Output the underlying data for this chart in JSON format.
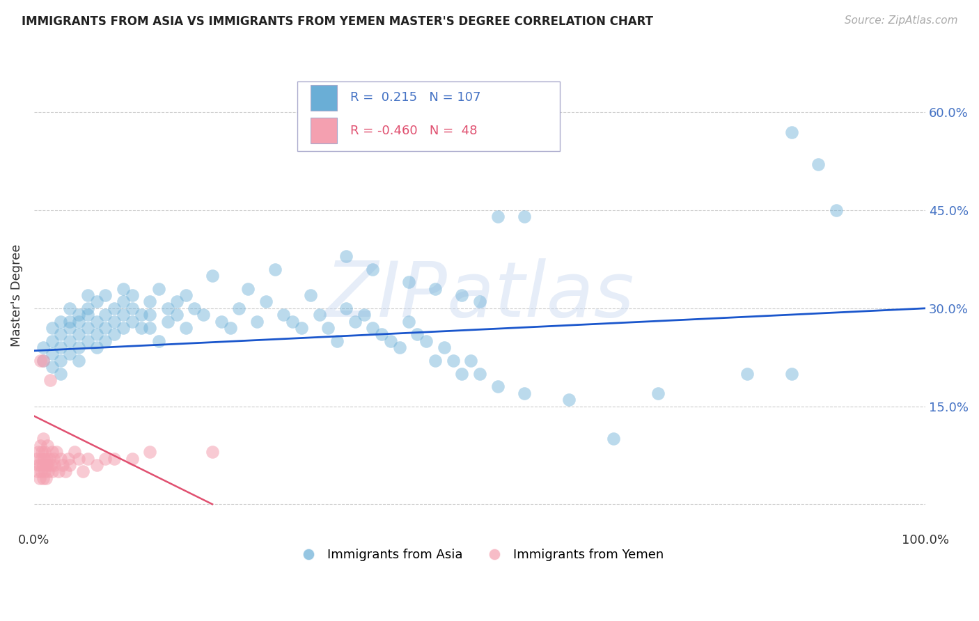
{
  "title": "IMMIGRANTS FROM ASIA VS IMMIGRANTS FROM YEMEN MASTER'S DEGREE CORRELATION CHART",
  "source": "Source: ZipAtlas.com",
  "ylabel": "Master's Degree",
  "yticks": [
    0.0,
    0.15,
    0.3,
    0.45,
    0.6
  ],
  "ytick_labels": [
    "",
    "15.0%",
    "30.0%",
    "45.0%",
    "60.0%"
  ],
  "xmin": 0.0,
  "xmax": 1.0,
  "ymin": -0.04,
  "ymax": 0.68,
  "blue_R": 0.215,
  "blue_N": 107,
  "pink_R": -0.46,
  "pink_N": 48,
  "blue_color": "#6aaed6",
  "pink_color": "#f4a0b0",
  "trend_blue": "#1a56cc",
  "trend_pink": "#e05070",
  "watermark": "ZIPatlas",
  "watermark_blue": "#c8d8f0",
  "legend_label_blue": "Immigrants from Asia",
  "legend_label_pink": "Immigrants from Yemen",
  "blue_scatter_x": [
    0.01,
    0.01,
    0.02,
    0.02,
    0.02,
    0.02,
    0.03,
    0.03,
    0.03,
    0.03,
    0.03,
    0.04,
    0.04,
    0.04,
    0.04,
    0.04,
    0.05,
    0.05,
    0.05,
    0.05,
    0.05,
    0.06,
    0.06,
    0.06,
    0.06,
    0.06,
    0.07,
    0.07,
    0.07,
    0.07,
    0.08,
    0.08,
    0.08,
    0.08,
    0.09,
    0.09,
    0.09,
    0.1,
    0.1,
    0.1,
    0.1,
    0.11,
    0.11,
    0.11,
    0.12,
    0.12,
    0.13,
    0.13,
    0.13,
    0.14,
    0.14,
    0.15,
    0.15,
    0.16,
    0.16,
    0.17,
    0.17,
    0.18,
    0.19,
    0.2,
    0.21,
    0.22,
    0.23,
    0.24,
    0.25,
    0.26,
    0.27,
    0.28,
    0.29,
    0.3,
    0.31,
    0.32,
    0.33,
    0.34,
    0.35,
    0.36,
    0.37,
    0.38,
    0.39,
    0.4,
    0.41,
    0.42,
    0.43,
    0.44,
    0.45,
    0.46,
    0.47,
    0.48,
    0.49,
    0.5,
    0.35,
    0.38,
    0.42,
    0.45,
    0.48,
    0.5,
    0.52,
    0.55,
    0.6,
    0.65,
    0.7,
    0.8,
    0.85,
    0.88,
    0.9,
    0.52,
    0.55,
    0.85
  ],
  "blue_scatter_y": [
    0.22,
    0.24,
    0.25,
    0.23,
    0.27,
    0.21,
    0.26,
    0.24,
    0.28,
    0.22,
    0.2,
    0.28,
    0.25,
    0.23,
    0.27,
    0.3,
    0.28,
    0.26,
    0.24,
    0.29,
    0.22,
    0.3,
    0.27,
    0.25,
    0.29,
    0.32,
    0.28,
    0.31,
    0.26,
    0.24,
    0.29,
    0.27,
    0.32,
    0.25,
    0.3,
    0.28,
    0.26,
    0.31,
    0.29,
    0.27,
    0.33,
    0.3,
    0.28,
    0.32,
    0.29,
    0.27,
    0.31,
    0.29,
    0.27,
    0.33,
    0.25,
    0.3,
    0.28,
    0.31,
    0.29,
    0.32,
    0.27,
    0.3,
    0.29,
    0.35,
    0.28,
    0.27,
    0.3,
    0.33,
    0.28,
    0.31,
    0.36,
    0.29,
    0.28,
    0.27,
    0.32,
    0.29,
    0.27,
    0.25,
    0.3,
    0.28,
    0.29,
    0.27,
    0.26,
    0.25,
    0.24,
    0.28,
    0.26,
    0.25,
    0.22,
    0.24,
    0.22,
    0.2,
    0.22,
    0.2,
    0.38,
    0.36,
    0.34,
    0.33,
    0.32,
    0.31,
    0.18,
    0.17,
    0.16,
    0.1,
    0.17,
    0.2,
    0.57,
    0.52,
    0.45,
    0.44,
    0.44,
    0.2
  ],
  "pink_scatter_x": [
    0.003,
    0.004,
    0.005,
    0.005,
    0.006,
    0.007,
    0.007,
    0.008,
    0.008,
    0.009,
    0.01,
    0.01,
    0.01,
    0.011,
    0.012,
    0.012,
    0.013,
    0.013,
    0.014,
    0.015,
    0.015,
    0.016,
    0.017,
    0.018,
    0.019,
    0.02,
    0.02,
    0.022,
    0.023,
    0.025,
    0.027,
    0.03,
    0.032,
    0.035,
    0.038,
    0.04,
    0.045,
    0.05,
    0.055,
    0.06,
    0.07,
    0.08,
    0.09,
    0.11,
    0.13,
    0.2,
    0.007,
    0.01
  ],
  "pink_scatter_y": [
    0.07,
    0.05,
    0.08,
    0.06,
    0.04,
    0.09,
    0.06,
    0.07,
    0.05,
    0.08,
    0.06,
    0.04,
    0.1,
    0.07,
    0.05,
    0.08,
    0.06,
    0.04,
    0.07,
    0.09,
    0.06,
    0.05,
    0.07,
    0.19,
    0.06,
    0.08,
    0.05,
    0.07,
    0.06,
    0.08,
    0.05,
    0.07,
    0.06,
    0.05,
    0.07,
    0.06,
    0.08,
    0.07,
    0.05,
    0.07,
    0.06,
    0.07,
    0.07,
    0.07,
    0.08,
    0.08,
    0.22,
    0.22
  ],
  "blue_trend_x0": 0.0,
  "blue_trend_x1": 1.0,
  "blue_trend_y0": 0.235,
  "blue_trend_y1": 0.3,
  "pink_trend_x0": 0.0,
  "pink_trend_x1": 0.2,
  "pink_trend_y0": 0.135,
  "pink_trend_y1": 0.0
}
